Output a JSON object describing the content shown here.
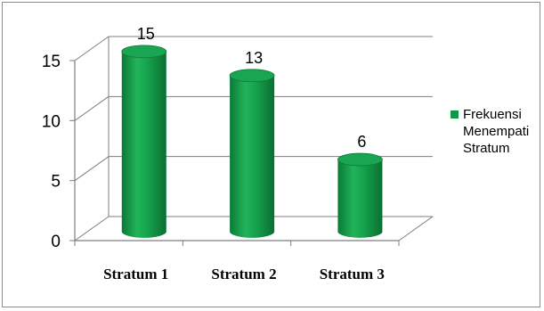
{
  "chart_data": {
    "type": "bar",
    "categories": [
      "Stratum 1",
      "Stratum 2",
      "Stratum 3"
    ],
    "series": [
      {
        "name": "Frekuensi Menempati Stratum",
        "values": [
          15,
          13,
          6
        ]
      }
    ],
    "ylim": [
      0,
      15
    ],
    "yticks": [
      0,
      5,
      10,
      15
    ],
    "grid": true,
    "legend": "right",
    "bar_color": "#109648",
    "data_labels": [
      "15",
      "13",
      "6"
    ],
    "title": "",
    "xlabel": "",
    "ylabel": ""
  }
}
